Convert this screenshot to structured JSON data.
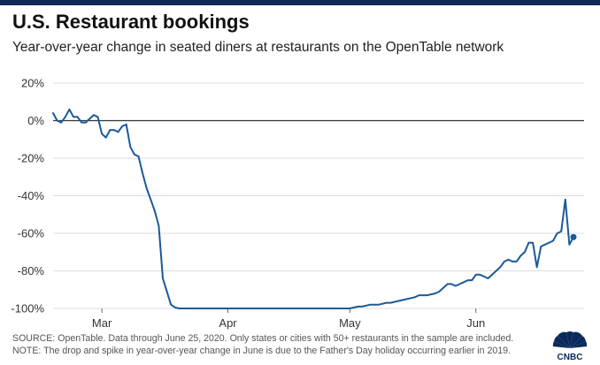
{
  "header": {
    "title": "U.S. Restaurant bookings",
    "subtitle": "Year-over-year change in seated diners at restaurants on the OpenTable network"
  },
  "footer": {
    "source_line": "SOURCE: OpenTable. Data through June 25, 2020. Only states or cities with 50+ restaurants in the sample are included.",
    "note_line": "NOTE: The drop and spike in year-over-year change in June is due to the Father's Day holiday occurring earlier in 2019.",
    "logo_label": "CNBC"
  },
  "colors": {
    "line": "#1a5a9a",
    "zero_line": "#333333",
    "grid": "#dddddd",
    "topbar": "#0f2a5a"
  },
  "chart_data": {
    "type": "line",
    "title": "U.S. Restaurant bookings",
    "subtitle": "Year-over-year change in seated diners at restaurants on the OpenTable network",
    "xlabel": "",
    "ylabel": "",
    "x_start": "2020-02-18",
    "x_end": "2020-06-25",
    "x_ticks": [
      {
        "date": "2020-03-01",
        "label": "Mar"
      },
      {
        "date": "2020-04-01",
        "label": "Apr"
      },
      {
        "date": "2020-05-01",
        "label": "May"
      },
      {
        "date": "2020-06-01",
        "label": "Jun"
      }
    ],
    "ylim": [
      -100,
      20
    ],
    "y_ticks": [
      {
        "value": 20,
        "label": "20%"
      },
      {
        "value": 0,
        "label": "0%"
      },
      {
        "value": -20,
        "label": "-20%"
      },
      {
        "value": -40,
        "label": "-40%"
      },
      {
        "value": -60,
        "label": "-60%"
      },
      {
        "value": -80,
        "label": "-80%"
      },
      {
        "value": -100,
        "label": "-100%"
      }
    ],
    "grid": true,
    "end_marker": true,
    "series": [
      {
        "x": [
          "2020-02-18",
          "2020-02-19",
          "2020-02-20",
          "2020-02-21",
          "2020-02-22",
          "2020-02-23",
          "2020-02-24",
          "2020-02-25",
          "2020-02-26",
          "2020-02-27",
          "2020-02-28",
          "2020-02-29",
          "2020-03-01",
          "2020-03-02",
          "2020-03-03",
          "2020-03-04",
          "2020-03-05",
          "2020-03-06",
          "2020-03-07",
          "2020-03-08",
          "2020-03-09",
          "2020-03-10",
          "2020-03-11",
          "2020-03-12",
          "2020-03-13",
          "2020-03-14",
          "2020-03-15",
          "2020-03-16",
          "2020-03-17",
          "2020-03-18",
          "2020-03-19",
          "2020-03-20",
          "2020-03-21",
          "2020-03-24",
          "2020-03-31",
          "2020-04-07",
          "2020-04-14",
          "2020-04-21",
          "2020-04-28",
          "2020-05-01",
          "2020-05-03",
          "2020-05-04",
          "2020-05-06",
          "2020-05-08",
          "2020-05-10",
          "2020-05-11",
          "2020-05-13",
          "2020-05-15",
          "2020-05-17",
          "2020-05-18",
          "2020-05-20",
          "2020-05-22",
          "2020-05-23",
          "2020-05-24",
          "2020-05-25",
          "2020-05-26",
          "2020-05-27",
          "2020-05-28",
          "2020-05-29",
          "2020-05-30",
          "2020-05-31",
          "2020-06-01",
          "2020-06-02",
          "2020-06-03",
          "2020-06-04",
          "2020-06-05",
          "2020-06-06",
          "2020-06-07",
          "2020-06-08",
          "2020-06-09",
          "2020-06-10",
          "2020-06-11",
          "2020-06-12",
          "2020-06-13",
          "2020-06-14",
          "2020-06-15",
          "2020-06-16",
          "2020-06-17",
          "2020-06-18",
          "2020-06-19",
          "2020-06-20",
          "2020-06-21",
          "2020-06-22",
          "2020-06-23",
          "2020-06-24",
          "2020-06-25"
        ],
        "values": [
          4,
          0,
          -1,
          2,
          6,
          2,
          2,
          -1,
          -1,
          1,
          3,
          2,
          -7,
          -9,
          -5,
          -5,
          -6,
          -3,
          -2,
          -14,
          -18,
          -19,
          -28,
          -36,
          -42,
          -48,
          -56,
          -84,
          -91,
          -98,
          -99.5,
          -100,
          -100,
          -100,
          -100,
          -100,
          -100,
          -100,
          -100,
          -100,
          -99,
          -99,
          -98,
          -98,
          -97,
          -97,
          -96,
          -95,
          -94,
          -93,
          -93,
          -92,
          -91,
          -89,
          -87,
          -87,
          -88,
          -87,
          -86,
          -85,
          -85,
          -82,
          -82,
          -83,
          -84,
          -82,
          -80,
          -78,
          -75,
          -74,
          -75,
          -75,
          -72,
          -70,
          -65,
          -65,
          -78,
          -67,
          -66,
          -65,
          -64,
          -60,
          -59,
          -42,
          -66,
          -62
        ]
      }
    ]
  }
}
